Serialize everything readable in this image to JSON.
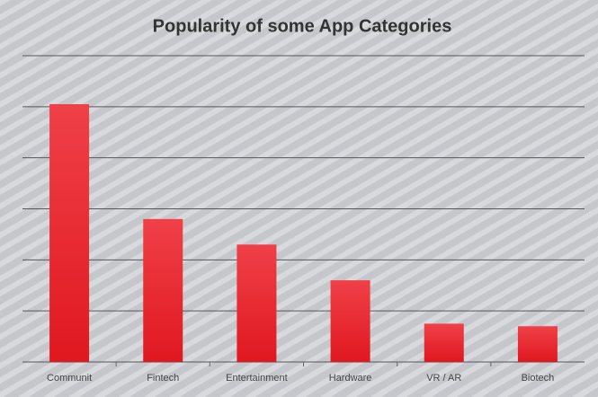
{
  "chart_data": {
    "type": "bar",
    "title": "Popularity of some App Categories",
    "categories": [
      "Communit",
      "Fintech",
      "Entertainment",
      "Hardware",
      "VR / AR",
      "Biotech"
    ],
    "values": [
      5.05,
      2.8,
      2.3,
      1.6,
      0.75,
      0.7
    ],
    "color": "#e8202a",
    "ylim": [
      0,
      6
    ],
    "yticks": [
      0,
      1,
      2,
      3,
      4,
      5,
      6
    ],
    "grid": true,
    "show_ytick_labels": false
  }
}
